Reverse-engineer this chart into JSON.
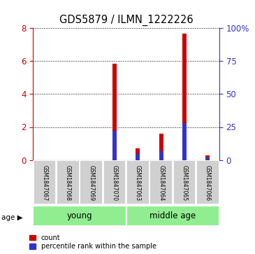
{
  "title": "GDS5879 / ILMN_1222226",
  "samples": [
    "GSM1847067",
    "GSM1847068",
    "GSM1847069",
    "GSM1847070",
    "GSM1847063",
    "GSM1847064",
    "GSM1847065",
    "GSM1847066"
  ],
  "count_values": [
    0.0,
    0.0,
    0.0,
    5.85,
    0.7,
    1.6,
    7.65,
    0.3
  ],
  "percentile_values": [
    0.0,
    0.0,
    0.0,
    22.0,
    4.5,
    6.5,
    28.0,
    2.0
  ],
  "left_ylim": [
    0,
    8
  ],
  "right_ylim": [
    0,
    100
  ],
  "left_yticks": [
    0,
    2,
    4,
    6,
    8
  ],
  "right_yticks": [
    0,
    25,
    50,
    75,
    100
  ],
  "right_yticklabels": [
    "0",
    "25",
    "50",
    "75",
    "100%"
  ],
  "bar_color_red": "#cc0000",
  "bar_color_blue": "#3333cc",
  "group_young_label": "young",
  "group_middle_label": "middle age",
  "group_bg_color": "#90ee90",
  "sample_bg_color": "#d0d0d0",
  "legend_count_label": "count",
  "legend_percentile_label": "percentile rank within the sample",
  "age_label": "age",
  "bar_width": 0.18,
  "percentile_bar_width": 0.18,
  "grid_color": "black",
  "fig_width": 3.65,
  "fig_height": 3.63,
  "fig_dpi": 100
}
